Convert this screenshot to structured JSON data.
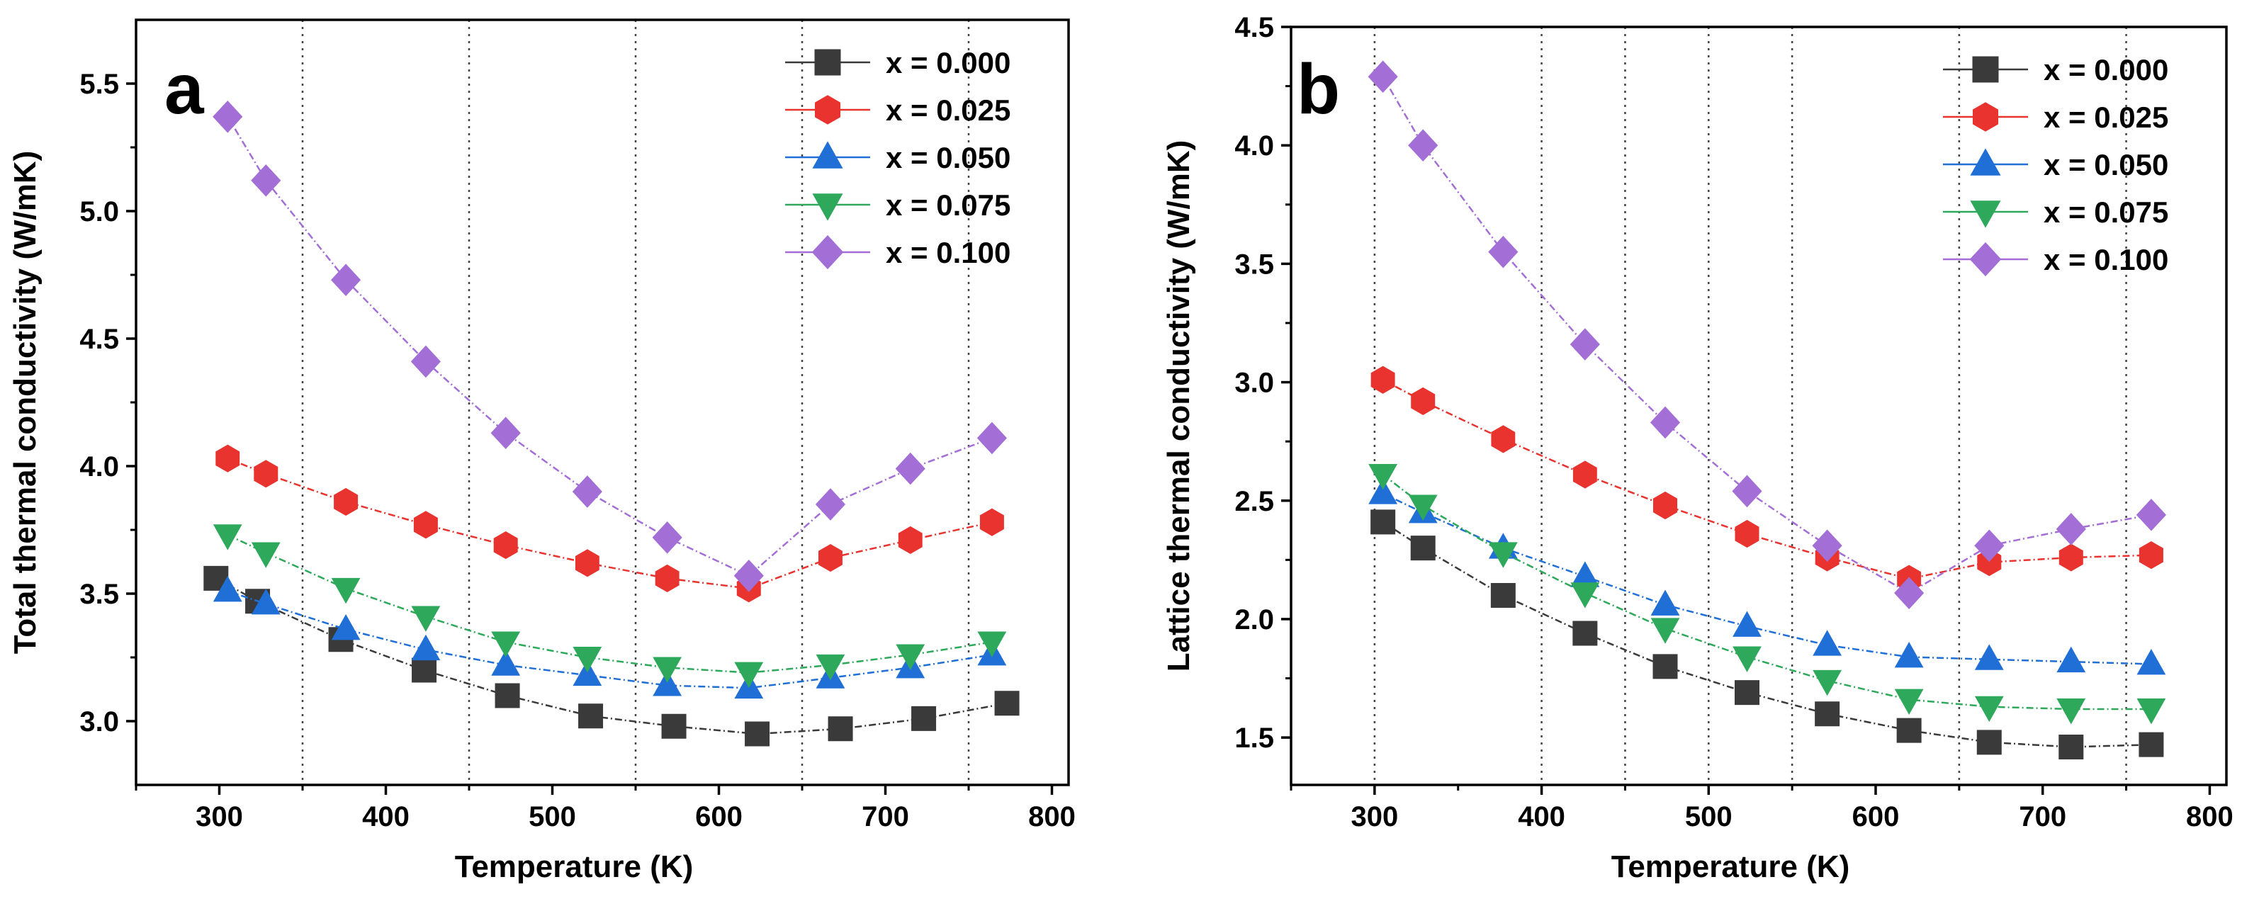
{
  "chart_data": [
    {
      "type": "line",
      "panel_label": "a",
      "xlabel": "Temperature (K)",
      "ylabel": "Total thermal conductivity (W/mK)",
      "xlim": [
        250,
        810
      ],
      "ylim": [
        2.75,
        5.75
      ],
      "xticks": [
        300,
        400,
        500,
        600,
        700,
        800
      ],
      "xtick_labels": [
        "300",
        "400",
        "500",
        "600",
        "700",
        "800"
      ],
      "yticks": [
        3.0,
        3.5,
        4.0,
        4.5,
        5.0,
        5.5
      ],
      "ytick_labels": [
        "3.0",
        "3.5",
        "4.0",
        "4.5",
        "5.0",
        "5.5"
      ],
      "vlines": [
        350,
        450,
        550,
        650,
        750
      ],
      "legend_position": "top-right",
      "series": [
        {
          "name": "x = 0.000",
          "marker": "square",
          "color": "#3a3a3a",
          "x": [
            298,
            323,
            373,
            423,
            473,
            523,
            573,
            623,
            673,
            723,
            773
          ],
          "y": [
            3.56,
            3.47,
            3.32,
            3.2,
            3.1,
            3.02,
            2.98,
            2.95,
            2.97,
            3.01,
            3.07
          ]
        },
        {
          "name": "x = 0.025",
          "marker": "hexagon",
          "color": "#e8332f",
          "x": [
            305,
            328,
            376,
            424,
            472,
            521,
            569,
            618,
            667,
            715,
            764
          ],
          "y": [
            4.03,
            3.97,
            3.86,
            3.77,
            3.69,
            3.62,
            3.56,
            3.52,
            3.64,
            3.71,
            3.78
          ]
        },
        {
          "name": "x = 0.050",
          "marker": "triangle-up",
          "color": "#1f6fd6",
          "x": [
            305,
            328,
            376,
            424,
            472,
            521,
            569,
            618,
            667,
            715,
            764
          ],
          "y": [
            3.51,
            3.46,
            3.36,
            3.28,
            3.22,
            3.18,
            3.14,
            3.13,
            3.17,
            3.21,
            3.26
          ]
        },
        {
          "name": "x = 0.075",
          "marker": "triangle-down",
          "color": "#2ea85a",
          "x": [
            305,
            328,
            376,
            424,
            472,
            521,
            569,
            618,
            667,
            715,
            764
          ],
          "y": [
            3.73,
            3.66,
            3.52,
            3.41,
            3.31,
            3.25,
            3.21,
            3.19,
            3.22,
            3.26,
            3.31
          ]
        },
        {
          "name": "x = 0.100",
          "marker": "diamond",
          "color": "#a36fd6",
          "x": [
            305,
            328,
            376,
            424,
            472,
            521,
            569,
            618,
            667,
            715,
            764
          ],
          "y": [
            5.37,
            5.12,
            4.73,
            4.41,
            4.13,
            3.9,
            3.72,
            3.57,
            3.85,
            3.99,
            4.11
          ]
        }
      ]
    },
    {
      "type": "line",
      "panel_label": "b",
      "xlabel": "Temperature (K)",
      "ylabel": "Lattice thermal conductivity (W/mK)",
      "xlim": [
        250,
        810
      ],
      "ylim": [
        1.3,
        4.5
      ],
      "xticks": [
        300,
        400,
        500,
        600,
        700,
        800
      ],
      "xtick_labels": [
        "300",
        "400",
        "500",
        "600",
        "700",
        "800"
      ],
      "yticks": [
        1.5,
        2.0,
        2.5,
        3.0,
        3.5,
        4.0,
        4.5
      ],
      "ytick_labels": [
        "1.5",
        "2.0",
        "2.5",
        "3.0",
        "3.5",
        "4.0",
        "4.5"
      ],
      "vlines": [
        300,
        400,
        450,
        500,
        550,
        650,
        750
      ],
      "legend_position": "top-right",
      "series": [
        {
          "name": "x = 0.000",
          "marker": "square",
          "color": "#3a3a3a",
          "x": [
            305,
            329,
            377,
            426,
            474,
            523,
            571,
            620,
            668,
            717,
            765
          ],
          "y": [
            2.41,
            2.3,
            2.1,
            1.94,
            1.8,
            1.69,
            1.6,
            1.53,
            1.48,
            1.46,
            1.47
          ]
        },
        {
          "name": "x = 0.025",
          "marker": "hexagon",
          "color": "#e8332f",
          "x": [
            305,
            329,
            377,
            426,
            474,
            523,
            571,
            620,
            668,
            717,
            765
          ],
          "y": [
            3.01,
            2.92,
            2.76,
            2.61,
            2.48,
            2.36,
            2.26,
            2.17,
            2.24,
            2.26,
            2.27
          ]
        },
        {
          "name": "x = 0.050",
          "marker": "triangle-up",
          "color": "#1f6fd6",
          "x": [
            305,
            329,
            377,
            426,
            474,
            523,
            571,
            620,
            668,
            717,
            765
          ],
          "y": [
            2.53,
            2.45,
            2.3,
            2.18,
            2.06,
            1.97,
            1.89,
            1.84,
            1.83,
            1.82,
            1.81
          ]
        },
        {
          "name": "x = 0.075",
          "marker": "triangle-down",
          "color": "#2ea85a",
          "x": [
            305,
            329,
            377,
            426,
            474,
            523,
            571,
            620,
            668,
            717,
            765
          ],
          "y": [
            2.61,
            2.48,
            2.28,
            2.11,
            1.96,
            1.84,
            1.74,
            1.66,
            1.63,
            1.62,
            1.62
          ]
        },
        {
          "name": "x = 0.100",
          "marker": "diamond",
          "color": "#a36fd6",
          "x": [
            305,
            329,
            377,
            426,
            474,
            523,
            571,
            620,
            668,
            717,
            765
          ],
          "y": [
            4.29,
            4.0,
            3.55,
            3.16,
            2.83,
            2.54,
            2.31,
            2.11,
            2.31,
            2.38,
            2.44
          ]
        }
      ]
    }
  ]
}
